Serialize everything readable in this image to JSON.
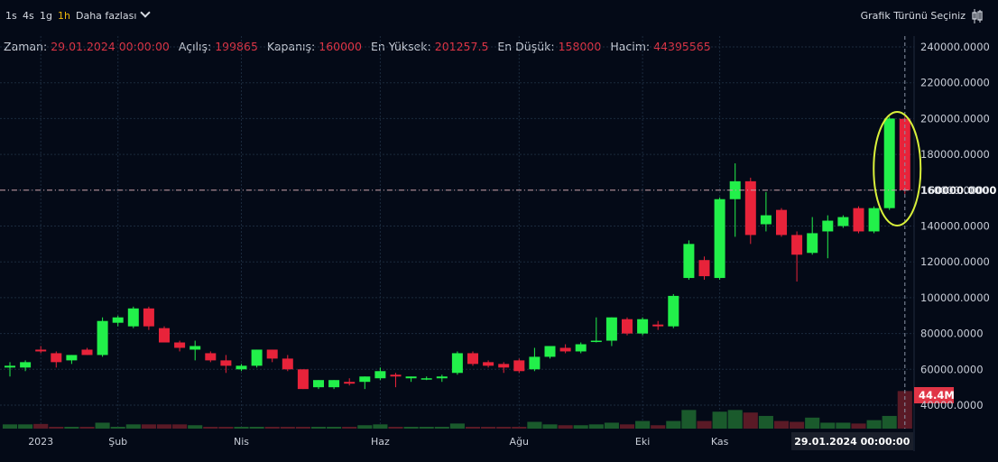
{
  "toolbar": {
    "timeframes": [
      "1s",
      "4s",
      "1g",
      "1h"
    ],
    "active_timeframe": "1h",
    "more_label": "Daha fazlası",
    "chart_type_label": "Grafik Türünü Seçiniz"
  },
  "info_bar": {
    "time_label": "Zaman:",
    "time_value": "29.01.2024 00:00:00",
    "open_label": "Açılış:",
    "open_value": "199865",
    "close_label": "Kapanış:",
    "close_value": "160000",
    "high_label": "En Yüksek:",
    "high_value": "201257.5",
    "low_label": "En Düşük:",
    "low_value": "158000",
    "volume_label": "Hacim:",
    "volume_value": "44395565"
  },
  "colors": {
    "background": "#040a17",
    "up": "#22f04a",
    "down": "#e8233a",
    "grid": "#1b2a3d",
    "crosshair": "#c9a0a8",
    "highlight": "#d9f03a"
  },
  "chart_data": {
    "type": "candlestick",
    "price_axis": {
      "ticks": [
        {
          "value": 240000,
          "label": "240000.0000"
        },
        {
          "value": 220000,
          "label": "220000.0000"
        },
        {
          "value": 200000,
          "label": "200000.0000"
        },
        {
          "value": 180000,
          "label": "180000.0000"
        },
        {
          "value": 160000,
          "label": "160000.0000"
        },
        {
          "value": 140000,
          "label": "140000.0000"
        },
        {
          "value": 120000,
          "label": "120000.0000"
        },
        {
          "value": 100000,
          "label": "100000.0000"
        },
        {
          "value": 80000,
          "label": "80000.0000"
        },
        {
          "value": 60000,
          "label": "60000.0000"
        },
        {
          "value": 40000,
          "label": "40000.0000"
        }
      ],
      "range": [
        27000,
        245000
      ]
    },
    "time_axis": {
      "labels": [
        {
          "index": 2,
          "label": "2023"
        },
        {
          "index": 7,
          "label": "Şub"
        },
        {
          "index": 15,
          "label": "Nis"
        },
        {
          "index": 24,
          "label": "Haz"
        },
        {
          "index": 33,
          "label": "Ağu"
        },
        {
          "index": 41,
          "label": "Eki"
        },
        {
          "index": 46,
          "label": "Kas"
        }
      ],
      "crosshair_label": "29.01.2024",
      "crosshair_time": "00:00:00"
    },
    "crosshair_price": 160000,
    "volume_label": "44.4M",
    "volume_max": 48000000,
    "candles": [
      {
        "o": 61000,
        "h": 64000,
        "l": 56000,
        "c": 62000,
        "v": 5000000
      },
      {
        "o": 61000,
        "h": 65000,
        "l": 59000,
        "c": 64000,
        "v": 5000000
      },
      {
        "o": 71000,
        "h": 73000,
        "l": 69000,
        "c": 70000,
        "v": 5500000
      },
      {
        "o": 69000,
        "h": 70000,
        "l": 61000,
        "c": 64000,
        "v": 2000000
      },
      {
        "o": 65000,
        "h": 68000,
        "l": 63000,
        "c": 68000,
        "v": 2000000
      },
      {
        "o": 71000,
        "h": 72000,
        "l": 68000,
        "c": 68000,
        "v": 2000000
      },
      {
        "o": 68000,
        "h": 89000,
        "l": 67000,
        "c": 87000,
        "v": 7000000
      },
      {
        "o": 86000,
        "h": 90000,
        "l": 84000,
        "c": 89000,
        "v": 2000000
      },
      {
        "o": 84000,
        "h": 95000,
        "l": 83000,
        "c": 94000,
        "v": 5000000
      },
      {
        "o": 94000,
        "h": 95000,
        "l": 82000,
        "c": 84000,
        "v": 5000000
      },
      {
        "o": 83000,
        "h": 84000,
        "l": 75000,
        "c": 75000,
        "v": 5000000
      },
      {
        "o": 75000,
        "h": 76000,
        "l": 70000,
        "c": 72000,
        "v": 5000000
      },
      {
        "o": 71000,
        "h": 76000,
        "l": 65000,
        "c": 73000,
        "v": 4000000
      },
      {
        "o": 69000,
        "h": 70000,
        "l": 64000,
        "c": 65000,
        "v": 2000000
      },
      {
        "o": 65000,
        "h": 68000,
        "l": 58000,
        "c": 62000,
        "v": 2000000
      },
      {
        "o": 60000,
        "h": 63000,
        "l": 59000,
        "c": 62000,
        "v": 2000000
      },
      {
        "o": 62000,
        "h": 71000,
        "l": 61000,
        "c": 71000,
        "v": 2000000
      },
      {
        "o": 71000,
        "h": 71000,
        "l": 64000,
        "c": 66000,
        "v": 2000000
      },
      {
        "o": 66000,
        "h": 68000,
        "l": 59000,
        "c": 60000,
        "v": 2000000
      },
      {
        "o": 60000,
        "h": 60000,
        "l": 49000,
        "c": 49000,
        "v": 2000000
      },
      {
        "o": 50000,
        "h": 54000,
        "l": 49000,
        "c": 54000,
        "v": 2000000
      },
      {
        "o": 50000,
        "h": 54000,
        "l": 49000,
        "c": 54000,
        "v": 2000000
      },
      {
        "o": 53000,
        "h": 55000,
        "l": 51000,
        "c": 52000,
        "v": 2000000
      },
      {
        "o": 53000,
        "h": 56000,
        "l": 49000,
        "c": 56000,
        "v": 4000000
      },
      {
        "o": 55000,
        "h": 61000,
        "l": 54000,
        "c": 59000,
        "v": 5000000
      },
      {
        "o": 57000,
        "h": 58000,
        "l": 50000,
        "c": 56000,
        "v": 2000000
      },
      {
        "o": 55000,
        "h": 56000,
        "l": 53000,
        "c": 56000,
        "v": 2000000
      },
      {
        "o": 55000,
        "h": 56000,
        "l": 54000,
        "c": 55000,
        "v": 2000000
      },
      {
        "o": 55000,
        "h": 57000,
        "l": 53000,
        "c": 56000,
        "v": 2000000
      },
      {
        "o": 58000,
        "h": 70000,
        "l": 57000,
        "c": 69000,
        "v": 6000000
      },
      {
        "o": 69000,
        "h": 70000,
        "l": 62000,
        "c": 63000,
        "v": 2000000
      },
      {
        "o": 64000,
        "h": 65000,
        "l": 61000,
        "c": 62000,
        "v": 2000000
      },
      {
        "o": 63000,
        "h": 64000,
        "l": 58000,
        "c": 61000,
        "v": 2000000
      },
      {
        "o": 65000,
        "h": 66000,
        "l": 58000,
        "c": 59000,
        "v": 2000000
      },
      {
        "o": 60000,
        "h": 72000,
        "l": 59000,
        "c": 67000,
        "v": 8000000
      },
      {
        "o": 67000,
        "h": 73000,
        "l": 66000,
        "c": 73000,
        "v": 5000000
      },
      {
        "o": 72000,
        "h": 74000,
        "l": 69000,
        "c": 70000,
        "v": 4000000
      },
      {
        "o": 70000,
        "h": 75000,
        "l": 69000,
        "c": 74000,
        "v": 4000000
      },
      {
        "o": 76000,
        "h": 89000,
        "l": 75000,
        "c": 76000,
        "v": 5000000
      },
      {
        "o": 76000,
        "h": 89000,
        "l": 73000,
        "c": 89000,
        "v": 7000000
      },
      {
        "o": 88000,
        "h": 89000,
        "l": 79000,
        "c": 80000,
        "v": 5000000
      },
      {
        "o": 80000,
        "h": 89000,
        "l": 79000,
        "c": 88000,
        "v": 9000000
      },
      {
        "o": 85000,
        "h": 87000,
        "l": 82000,
        "c": 84000,
        "v": 4000000
      },
      {
        "o": 84000,
        "h": 102000,
        "l": 83000,
        "c": 101000,
        "v": 9000000
      },
      {
        "o": 111000,
        "h": 132000,
        "l": 110000,
        "c": 130000,
        "v": 22000000
      },
      {
        "o": 121000,
        "h": 123000,
        "l": 110000,
        "c": 112000,
        "v": 9000000
      },
      {
        "o": 111000,
        "h": 156000,
        "l": 110000,
        "c": 155000,
        "v": 20000000
      },
      {
        "o": 155000,
        "h": 175000,
        "l": 134000,
        "c": 165000,
        "v": 22000000
      },
      {
        "o": 165000,
        "h": 167000,
        "l": 130000,
        "c": 135000,
        "v": 19000000
      },
      {
        "o": 141000,
        "h": 159000,
        "l": 137000,
        "c": 146000,
        "v": 15000000
      },
      {
        "o": 149000,
        "h": 150000,
        "l": 134000,
        "c": 135000,
        "v": 9000000
      },
      {
        "o": 135000,
        "h": 137000,
        "l": 109000,
        "c": 124000,
        "v": 8000000
      },
      {
        "o": 125000,
        "h": 145000,
        "l": 124000,
        "c": 136000,
        "v": 13000000
      },
      {
        "o": 137000,
        "h": 146000,
        "l": 122000,
        "c": 143000,
        "v": 7000000
      },
      {
        "o": 140000,
        "h": 146000,
        "l": 139000,
        "c": 145000,
        "v": 7000000
      },
      {
        "o": 150000,
        "h": 151000,
        "l": 136000,
        "c": 137000,
        "v": 6000000
      },
      {
        "o": 137000,
        "h": 151000,
        "l": 136000,
        "c": 150000,
        "v": 10000000
      },
      {
        "o": 150000,
        "h": 201000,
        "l": 149000,
        "c": 200000,
        "v": 15000000
      },
      {
        "o": 199865,
        "h": 201257.5,
        "l": 158000,
        "c": 160000,
        "v": 44395565
      }
    ]
  }
}
